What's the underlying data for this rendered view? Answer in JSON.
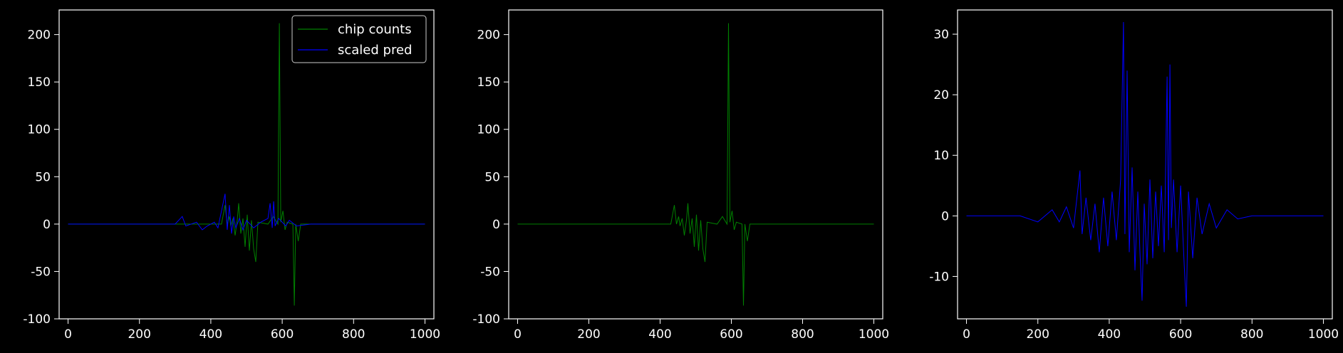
{
  "chart_data": [
    {
      "type": "line",
      "title": "",
      "xlabel": "",
      "ylabel": "",
      "xlim": [
        -25,
        1025
      ],
      "ylim": [
        -100,
        226
      ],
      "xticks": [
        0,
        200,
        400,
        600,
        800,
        1000
      ],
      "yticks": [
        -100,
        -50,
        0,
        50,
        100,
        150,
        200
      ],
      "legend": "top-right",
      "series": [
        {
          "name": "chip counts",
          "color": "#008000",
          "points": [
            [
              0,
              0
            ],
            [
              430,
              0
            ],
            [
              440,
              20
            ],
            [
              446,
              0
            ],
            [
              452,
              8
            ],
            [
              456,
              -2
            ],
            [
              462,
              6
            ],
            [
              468,
              -12
            ],
            [
              474,
              4
            ],
            [
              478,
              22
            ],
            [
              484,
              -10
            ],
            [
              490,
              6
            ],
            [
              496,
              -24
            ],
            [
              502,
              10
            ],
            [
              508,
              -28
            ],
            [
              514,
              4
            ],
            [
              520,
              -26
            ],
            [
              526,
              -40
            ],
            [
              532,
              2
            ],
            [
              560,
              0
            ],
            [
              575,
              8
            ],
            [
              588,
              0
            ],
            [
              592,
              212
            ],
            [
              596,
              2
            ],
            [
              602,
              14
            ],
            [
              608,
              -6
            ],
            [
              614,
              2
            ],
            [
              630,
              0
            ],
            [
              634,
              -86
            ],
            [
              638,
              0
            ],
            [
              645,
              -18
            ],
            [
              652,
              0
            ],
            [
              1000,
              0
            ]
          ]
        },
        {
          "name": "scaled pred",
          "color": "#0000ff",
          "points": [
            [
              0,
              0
            ],
            [
              300,
              0
            ],
            [
              320,
              8
            ],
            [
              330,
              -2
            ],
            [
              360,
              2
            ],
            [
              376,
              -6
            ],
            [
              390,
              -2
            ],
            [
              410,
              2
            ],
            [
              420,
              -4
            ],
            [
              440,
              32
            ],
            [
              446,
              -6
            ],
            [
              452,
              20
            ],
            [
              458,
              -10
            ],
            [
              464,
              8
            ],
            [
              470,
              -4
            ],
            [
              480,
              6
            ],
            [
              490,
              -6
            ],
            [
              500,
              4
            ],
            [
              520,
              -4
            ],
            [
              540,
              2
            ],
            [
              560,
              6
            ],
            [
              566,
              22
            ],
            [
              572,
              -4
            ],
            [
              576,
              24
            ],
            [
              580,
              -2
            ],
            [
              590,
              6
            ],
            [
              600,
              2
            ],
            [
              610,
              -2
            ],
            [
              620,
              4
            ],
            [
              640,
              -2
            ],
            [
              680,
              0
            ],
            [
              1000,
              0
            ]
          ]
        }
      ]
    },
    {
      "type": "line",
      "title": "",
      "xlabel": "",
      "ylabel": "",
      "xlim": [
        -25,
        1025
      ],
      "ylim": [
        -100,
        226
      ],
      "xticks": [
        0,
        200,
        400,
        600,
        800,
        1000
      ],
      "yticks": [
        -100,
        -50,
        0,
        50,
        100,
        150,
        200
      ],
      "series": [
        {
          "name": "chip counts",
          "color": "#008000",
          "points": [
            [
              0,
              0
            ],
            [
              430,
              0
            ],
            [
              440,
              20
            ],
            [
              446,
              0
            ],
            [
              452,
              8
            ],
            [
              456,
              -2
            ],
            [
              462,
              6
            ],
            [
              468,
              -12
            ],
            [
              474,
              4
            ],
            [
              478,
              22
            ],
            [
              484,
              -10
            ],
            [
              490,
              6
            ],
            [
              496,
              -24
            ],
            [
              502,
              10
            ],
            [
              508,
              -28
            ],
            [
              514,
              4
            ],
            [
              520,
              -26
            ],
            [
              526,
              -40
            ],
            [
              532,
              2
            ],
            [
              560,
              0
            ],
            [
              575,
              8
            ],
            [
              588,
              0
            ],
            [
              592,
              212
            ],
            [
              596,
              2
            ],
            [
              602,
              14
            ],
            [
              608,
              -6
            ],
            [
              614,
              2
            ],
            [
              630,
              0
            ],
            [
              634,
              -86
            ],
            [
              638,
              0
            ],
            [
              645,
              -18
            ],
            [
              652,
              0
            ],
            [
              1000,
              0
            ]
          ]
        }
      ]
    },
    {
      "type": "line",
      "title": "",
      "xlabel": "",
      "ylabel": "",
      "xlim": [
        -25,
        1025
      ],
      "ylim": [
        -17,
        34
      ],
      "xticks": [
        0,
        200,
        400,
        600,
        800,
        1000
      ],
      "yticks": [
        -10,
        0,
        10,
        20,
        30
      ],
      "series": [
        {
          "name": "scaled pred",
          "color": "#0000ff",
          "points": [
            [
              0,
              0
            ],
            [
              150,
              0
            ],
            [
              200,
              -1
            ],
            [
              240,
              1
            ],
            [
              260,
              -1
            ],
            [
              280,
              1.5
            ],
            [
              300,
              -2
            ],
            [
              318,
              7.5
            ],
            [
              324,
              -3
            ],
            [
              335,
              3
            ],
            [
              348,
              -4
            ],
            [
              360,
              2
            ],
            [
              372,
              -6
            ],
            [
              384,
              3
            ],
            [
              396,
              -5
            ],
            [
              408,
              4
            ],
            [
              420,
              -4
            ],
            [
              432,
              6
            ],
            [
              440,
              32
            ],
            [
              444,
              -3
            ],
            [
              450,
              24
            ],
            [
              456,
              -6
            ],
            [
              464,
              8
            ],
            [
              472,
              -9
            ],
            [
              480,
              4
            ],
            [
              486,
              -6
            ],
            [
              492,
              -14
            ],
            [
              498,
              2
            ],
            [
              506,
              -8
            ],
            [
              514,
              6
            ],
            [
              522,
              -7
            ],
            [
              530,
              4
            ],
            [
              538,
              -5
            ],
            [
              546,
              5
            ],
            [
              554,
              -6
            ],
            [
              562,
              23
            ],
            [
              566,
              -4
            ],
            [
              570,
              25
            ],
            [
              574,
              -2
            ],
            [
              580,
              6
            ],
            [
              590,
              -6
            ],
            [
              600,
              5
            ],
            [
              610,
              -8
            ],
            [
              616,
              -15
            ],
            [
              622,
              4
            ],
            [
              634,
              -7
            ],
            [
              646,
              3
            ],
            [
              660,
              -3
            ],
            [
              680,
              2
            ],
            [
              700,
              -2
            ],
            [
              730,
              1
            ],
            [
              760,
              -0.5
            ],
            [
              800,
              0
            ],
            [
              1000,
              0
            ]
          ]
        }
      ]
    }
  ]
}
